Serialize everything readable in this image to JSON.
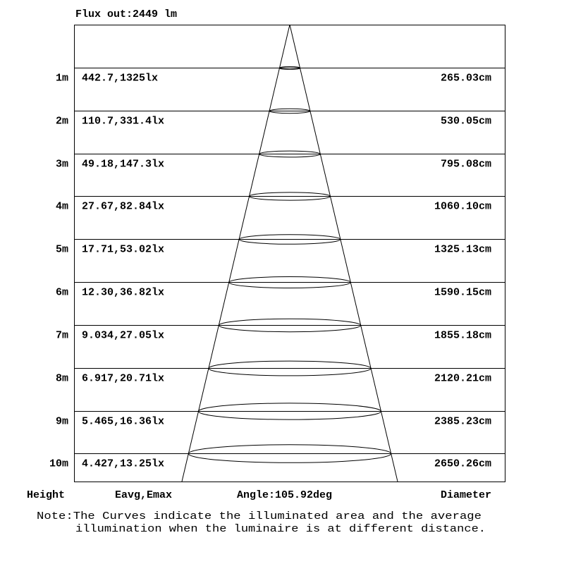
{
  "header": {
    "flux": "Flux out:2449 lm"
  },
  "rows": [
    {
      "height": "1m",
      "values": "442.7,1325lx",
      "diameter": "265.03cm"
    },
    {
      "height": "2m",
      "values": "110.7,331.4lx",
      "diameter": "530.05cm"
    },
    {
      "height": "3m",
      "values": "49.18,147.3lx",
      "diameter": "795.08cm"
    },
    {
      "height": "4m",
      "values": "27.67,82.84lx",
      "diameter": "1060.10cm"
    },
    {
      "height": "5m",
      "values": "17.71,53.02lx",
      "diameter": "1325.13cm"
    },
    {
      "height": "6m",
      "values": "12.30,36.82lx",
      "diameter": "1590.15cm"
    },
    {
      "height": "7m",
      "values": "9.034,27.05lx",
      "diameter": "1855.18cm"
    },
    {
      "height": "8m",
      "values": "6.917,20.71lx",
      "diameter": "2120.21cm"
    },
    {
      "height": "9m",
      "values": "5.465,16.36lx",
      "diameter": "2385.23cm"
    },
    {
      "height": "10m",
      "values": "4.427,13.25lx",
      "diameter": "2650.26cm"
    }
  ],
  "footer": {
    "height_label": "Height",
    "values_label": "Eavg,Emax",
    "angle": "Angle:105.92deg",
    "diameter_label": "Diameter",
    "note_line1": "Note:The Curves indicate the illuminated area and the average",
    "note_line2": "illumination when the luminaire is at different distance."
  }
}
